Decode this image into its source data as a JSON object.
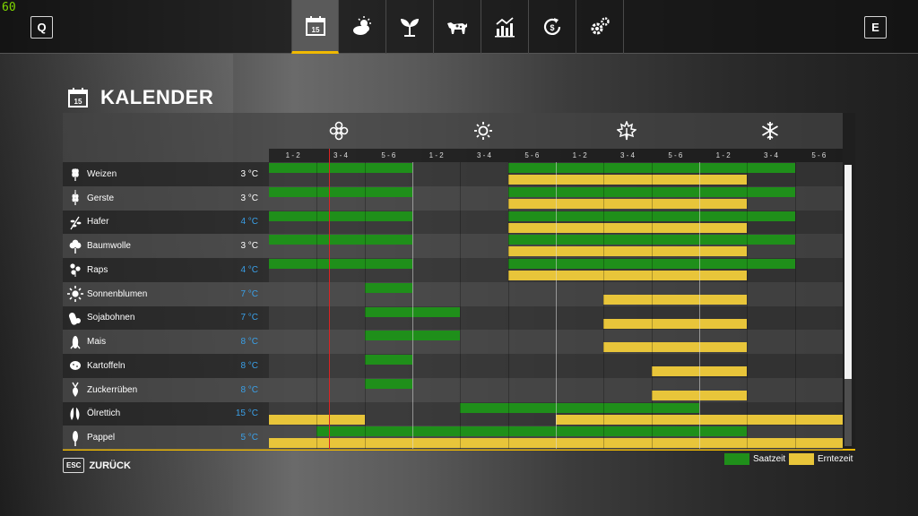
{
  "fps": "60",
  "nav": {
    "prev_key": "Q",
    "next_key": "E",
    "calendar_day": "15",
    "tabs": [
      {
        "name": "calendar",
        "icon": "calendar-icon",
        "active": true
      },
      {
        "name": "weather",
        "icon": "weather-icon",
        "active": false
      },
      {
        "name": "crops",
        "icon": "plant-icon",
        "active": false
      },
      {
        "name": "animals",
        "icon": "cow-icon",
        "active": false
      },
      {
        "name": "statistics",
        "icon": "chart-icon",
        "active": false
      },
      {
        "name": "finances",
        "icon": "finance-icon",
        "active": false
      },
      {
        "name": "settings",
        "icon": "gear-icon",
        "active": false
      }
    ]
  },
  "page": {
    "title": "KALENDER",
    "title_day": "15"
  },
  "seasons": [
    {
      "name": "spring",
      "icon": "flower-icon"
    },
    {
      "name": "summer",
      "icon": "sun-icon"
    },
    {
      "name": "autumn",
      "icon": "leaf-icon"
    },
    {
      "name": "winter",
      "icon": "snowflake-icon"
    }
  ],
  "months": [
    "1 - 2",
    "3 - 4",
    "5 - 6",
    "1 - 2",
    "3 - 4",
    "5 - 6",
    "1 - 2",
    "3 - 4",
    "5 - 6",
    "1 - 2",
    "3 - 4",
    "5 - 6"
  ],
  "current_period_position": 1.25,
  "scroll_position": 0.76,
  "crops": [
    {
      "name": "Weizen",
      "temp": "3 °C",
      "temp_color": "#ffffff",
      "icon": "wheat-icon",
      "sow": [
        [
          0,
          3
        ],
        [
          5,
          11
        ]
      ],
      "harvest": [
        [
          5,
          10
        ]
      ]
    },
    {
      "name": "Gerste",
      "temp": "3 °C",
      "temp_color": "#ffffff",
      "icon": "barley-icon",
      "sow": [
        [
          0,
          3
        ],
        [
          5,
          11
        ]
      ],
      "harvest": [
        [
          5,
          10
        ]
      ]
    },
    {
      "name": "Hafer",
      "temp": "4 °C",
      "temp_color": "#3aa0e8",
      "icon": "oat-icon",
      "sow": [
        [
          0,
          3
        ],
        [
          5,
          11
        ]
      ],
      "harvest": [
        [
          5,
          10
        ]
      ]
    },
    {
      "name": "Baumwolle",
      "temp": "3 °C",
      "temp_color": "#ffffff",
      "icon": "cotton-icon",
      "sow": [
        [
          0,
          3
        ],
        [
          5,
          11
        ]
      ],
      "harvest": [
        [
          5,
          10
        ]
      ]
    },
    {
      "name": "Raps",
      "temp": "4 °C",
      "temp_color": "#3aa0e8",
      "icon": "canola-icon",
      "sow": [
        [
          0,
          3
        ],
        [
          5,
          11
        ]
      ],
      "harvest": [
        [
          5,
          10
        ]
      ]
    },
    {
      "name": "Sonnenblumen",
      "temp": "7 °C",
      "temp_color": "#3aa0e8",
      "icon": "sunflower-icon",
      "sow": [
        [
          2,
          3
        ]
      ],
      "harvest": [
        [
          7,
          10
        ]
      ]
    },
    {
      "name": "Sojabohnen",
      "temp": "7 °C",
      "temp_color": "#3aa0e8",
      "icon": "soybean-icon",
      "sow": [
        [
          2,
          4
        ]
      ],
      "harvest": [
        [
          7,
          10
        ]
      ]
    },
    {
      "name": "Mais",
      "temp": "8 °C",
      "temp_color": "#3aa0e8",
      "icon": "corn-icon",
      "sow": [
        [
          2,
          4
        ]
      ],
      "harvest": [
        [
          7,
          10
        ]
      ]
    },
    {
      "name": "Kartoffeln",
      "temp": "8 °C",
      "temp_color": "#3aa0e8",
      "icon": "potato-icon",
      "sow": [
        [
          2,
          3
        ]
      ],
      "harvest": [
        [
          8,
          10
        ]
      ]
    },
    {
      "name": "Zuckerrüben",
      "temp": "8 °C",
      "temp_color": "#3aa0e8",
      "icon": "sugarbeet-icon",
      "sow": [
        [
          2,
          3
        ]
      ],
      "harvest": [
        [
          8,
          10
        ]
      ]
    },
    {
      "name": "Ölrettich",
      "temp": "15 °C",
      "temp_color": "#3aa0e8",
      "icon": "radish-icon",
      "sow": [
        [
          4,
          9
        ]
      ],
      "harvest": [
        [
          0,
          2
        ],
        [
          6,
          12
        ]
      ]
    },
    {
      "name": "Pappel",
      "temp": "5 °C",
      "temp_color": "#3aa0e8",
      "icon": "poplar-icon",
      "sow": [
        [
          1,
          10
        ]
      ],
      "harvest": [
        [
          0,
          12
        ]
      ]
    }
  ],
  "footer": {
    "esc_key": "ESC",
    "back_label": "ZURÜCK"
  },
  "legend": {
    "sow_label": "Saatzeit",
    "sow_color": "#1f8f1a",
    "harvest_label": "Erntezeit",
    "harvest_color": "#e8c53a"
  }
}
